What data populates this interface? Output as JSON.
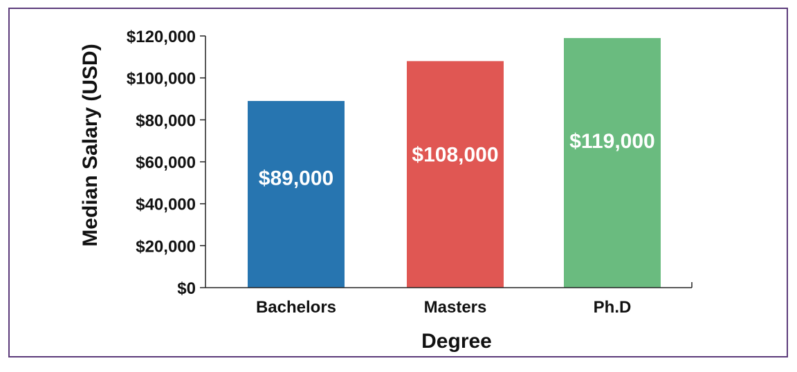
{
  "chart_data": {
    "type": "bar",
    "title": "",
    "xlabel": "Degree",
    "ylabel": "Median Salary (USD)",
    "categories": [
      "Bachelors",
      "Masters",
      "Ph.D"
    ],
    "values": [
      89000,
      108000,
      119000
    ],
    "data_labels": [
      "$89,000",
      "$108,000",
      "$119,000"
    ],
    "colors": [
      "#2775b0",
      "#e05753",
      "#6abb7f"
    ],
    "ylim": [
      0,
      120000
    ],
    "yticks": [
      0,
      20000,
      40000,
      60000,
      80000,
      100000,
      120000
    ],
    "ytick_labels": [
      "$0",
      "$20,000",
      "$40,000",
      "$60,000",
      "$80,000",
      "$100,000",
      "$120,000"
    ],
    "grid": false,
    "legend": "none"
  },
  "frame_color": "#5b3a7a"
}
